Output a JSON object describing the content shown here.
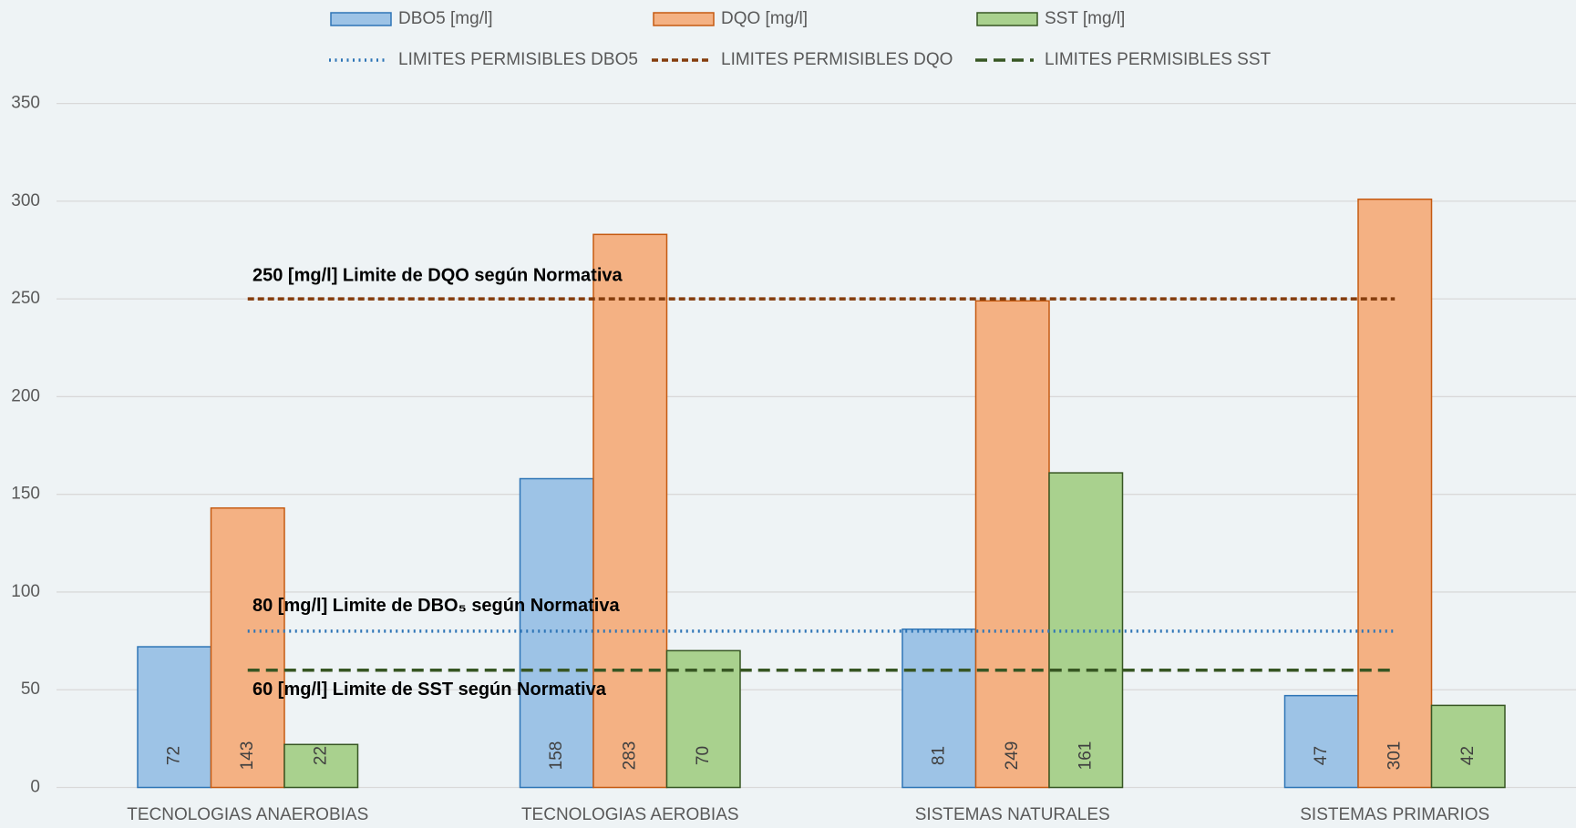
{
  "chart_data": {
    "type": "bar",
    "categories": [
      "TECNOLOGIAS ANAEROBIAS",
      "TECNOLOGIAS AEROBIAS",
      "SISTEMAS NATURALES",
      "SISTEMAS PRIMARIOS"
    ],
    "series": [
      {
        "name": "DBO5 [mg/l]",
        "type": "bar",
        "color": "#9dc3e6",
        "stroke": "#2e75b6",
        "values": [
          72,
          158,
          81,
          47
        ]
      },
      {
        "name": "DQO [mg/l]",
        "type": "bar",
        "color": "#f4b183",
        "stroke": "#c55a11",
        "values": [
          143,
          283,
          249,
          301
        ]
      },
      {
        "name": "SST [mg/l]",
        "type": "bar",
        "color": "#a9d18e",
        "stroke": "#375623",
        "values": [
          22,
          70,
          161,
          42
        ]
      },
      {
        "name": "LIMITES PERMISIBLES DBO5",
        "type": "line",
        "color": "#2e75b6",
        "dash": "dotted",
        "values": [
          80,
          80,
          80,
          80
        ],
        "annotation": "80 [mg/l] Limite de DBO₅ según Normativa"
      },
      {
        "name": "LIMITES PERMISIBLES DQO",
        "type": "line",
        "color": "#843c0c",
        "dash": "short",
        "values": [
          250,
          250,
          250,
          250
        ],
        "annotation": "250 [mg/l] Limite de DQO según Normativa"
      },
      {
        "name": "LIMITES PERMISIBLES SST",
        "type": "line",
        "color": "#375623",
        "dash": "long",
        "values": [
          60,
          60,
          60,
          60
        ],
        "annotation": "60 [mg/l] Limite de SST según Normativa"
      }
    ],
    "ylim": [
      0,
      350
    ],
    "yticks": [
      0,
      50,
      100,
      150,
      200,
      250,
      300,
      350
    ],
    "grid": true
  }
}
